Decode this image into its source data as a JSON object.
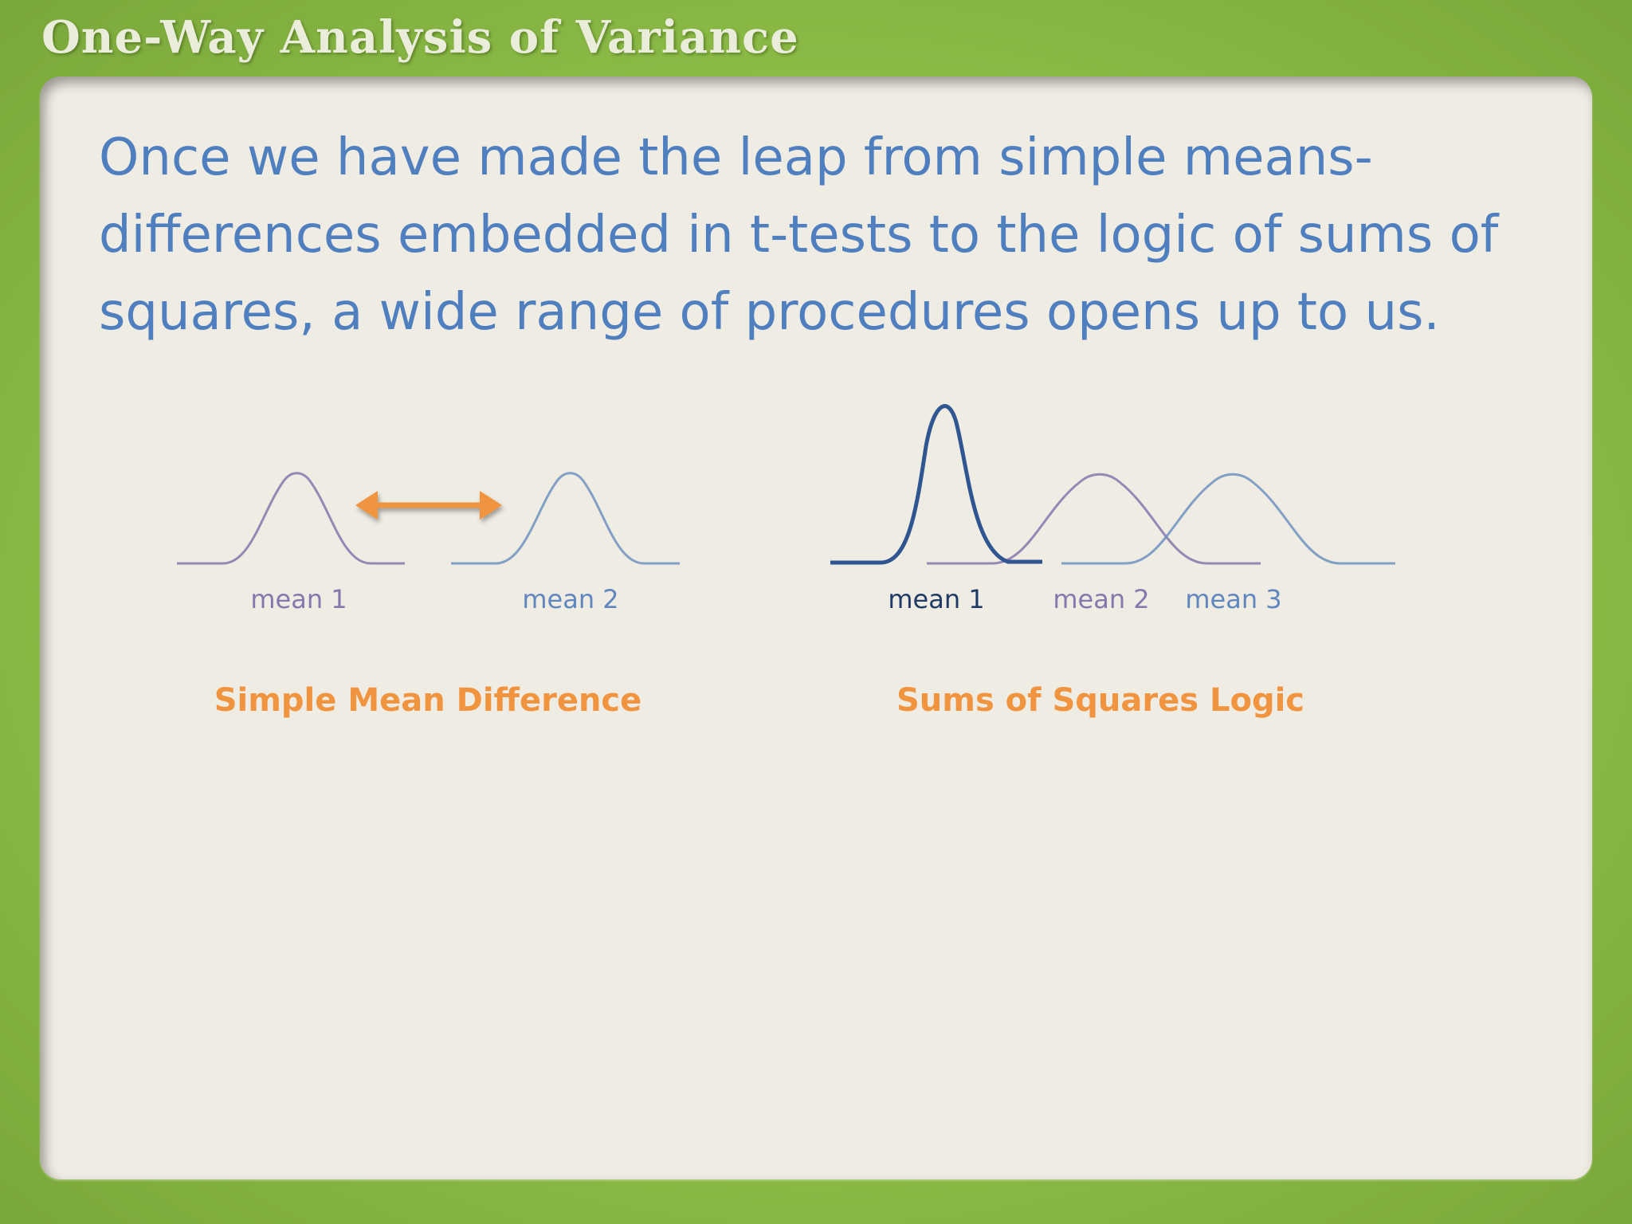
{
  "slide": {
    "title": "One-Way Analysis of Variance",
    "body": "Once we have made the leap from simple means-differences embedded in t-tests to the logic of sums of squares, a wide range of procedures opens up to us."
  },
  "left_diagram": {
    "label_mean1": "mean 1",
    "label_mean2": "mean 2",
    "caption": "Simple Mean Difference"
  },
  "right_diagram": {
    "label_mean1": "mean 1",
    "label_mean2": "mean 2",
    "label_mean3": "mean 3",
    "caption": "Sums of Squares Logic"
  },
  "colors": {
    "frame": "#8fbe4c",
    "panel": "#efece3",
    "text": "#4f7fbf",
    "accent": "#f0943f",
    "purple": "#8478ad",
    "blue": "#6e92c0",
    "navy": "#2f5690"
  }
}
